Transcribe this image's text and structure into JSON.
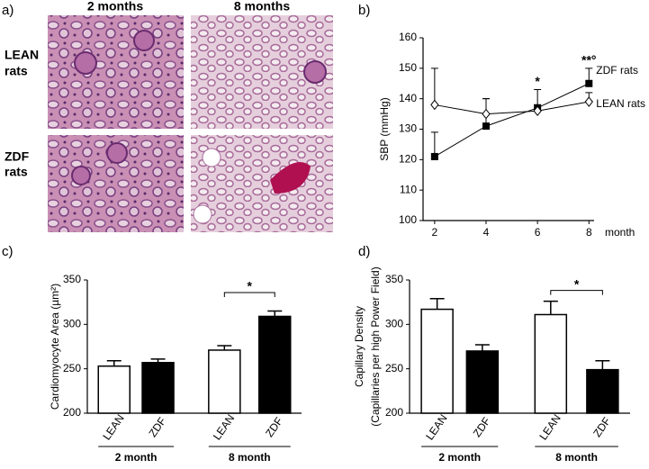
{
  "panel_labels": [
    "a)",
    "b)",
    "c)",
    "d)"
  ],
  "histology": {
    "columns": [
      "2 months",
      "8 months"
    ],
    "rows": [
      [
        "LEAN",
        "rats"
      ],
      [
        "ZDF",
        "rats"
      ]
    ]
  },
  "chart_data": [
    {
      "type": "line",
      "ylabel": "SBP (mmHg)",
      "xlabel": "month",
      "x": [
        2,
        4,
        6,
        8
      ],
      "xlim": [
        1.55,
        8.2
      ],
      "xticks": [
        2,
        4,
        6,
        8
      ],
      "ylim": [
        100,
        160
      ],
      "yticks": [
        100,
        110,
        120,
        130,
        140,
        150,
        160
      ],
      "series": [
        {
          "name": "ZDF rats",
          "color": "#000000",
          "marker": "square",
          "values": [
            121,
            131,
            137,
            145
          ],
          "errors": [
            8,
            9,
            6,
            5
          ]
        },
        {
          "name": "LEAN rats",
          "color": "#ffffff",
          "marker": "diamond",
          "values": [
            138,
            135,
            136,
            139
          ],
          "errors": [
            12,
            5,
            2,
            3
          ]
        }
      ],
      "annotations": [
        {
          "text": "*",
          "x": 6
        },
        {
          "text": "**°",
          "x": 8
        }
      ]
    },
    {
      "type": "bar",
      "ylabel": [
        "Cardiomyocyte Area (µm²)"
      ],
      "categories": [
        "LEAN",
        "ZDF",
        "LEAN",
        "ZDF"
      ],
      "groups": [
        "2 month",
        "8 month"
      ],
      "values": [
        253,
        257,
        271,
        309
      ],
      "errors": [
        6,
        4,
        5,
        6
      ],
      "colors": [
        "#ffffff",
        "#000000",
        "#ffffff",
        "#000000"
      ],
      "ylim": [
        200,
        350
      ],
      "yticks": [
        200,
        250,
        300,
        350
      ],
      "annotation": "*"
    },
    {
      "type": "bar",
      "ylabel": [
        "Capillary Density",
        "(Capillaries per high Power Field)"
      ],
      "categories": [
        "LEAN",
        "ZDF",
        "LEAN",
        "ZDF"
      ],
      "groups": [
        "2 month",
        "8 month"
      ],
      "values": [
        317,
        270,
        311,
        249
      ],
      "errors": [
        12,
        7,
        15,
        10
      ],
      "colors": [
        "#ffffff",
        "#000000",
        "#ffffff",
        "#000000"
      ],
      "ylim": [
        200,
        350
      ],
      "yticks": [
        200,
        250,
        300,
        350
      ],
      "annotation": "*"
    }
  ]
}
